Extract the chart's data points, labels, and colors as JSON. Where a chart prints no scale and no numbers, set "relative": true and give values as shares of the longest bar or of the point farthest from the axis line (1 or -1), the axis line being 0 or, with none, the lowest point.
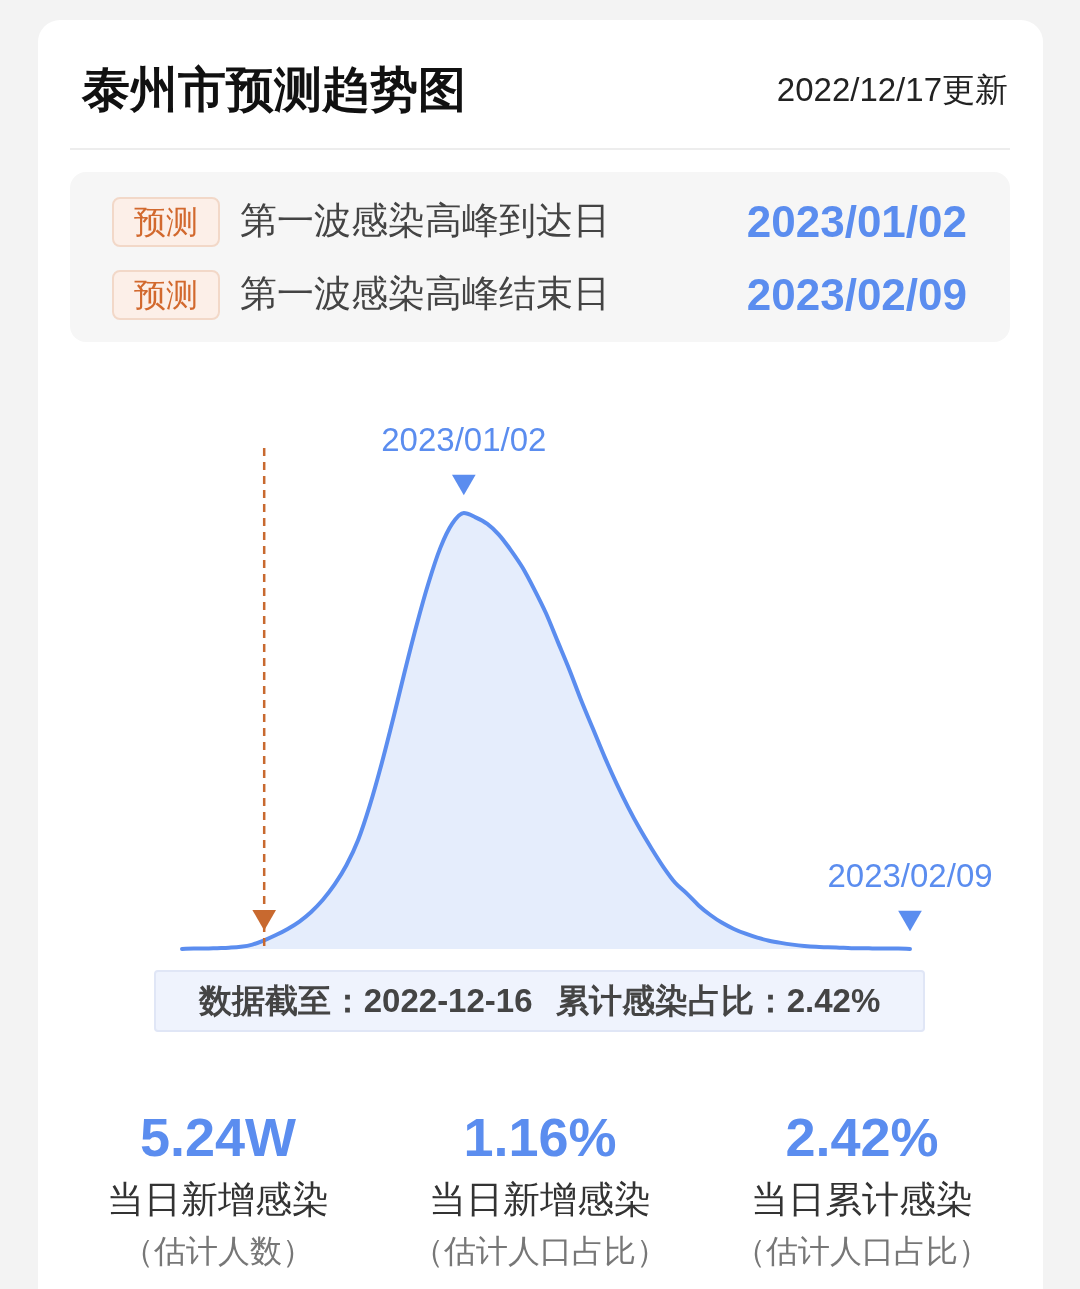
{
  "chart_data": {
    "type": "area",
    "title": "泰州市预测趋势图",
    "subtitle": "2022/12/17更新",
    "relative": true,
    "categories": [
      null,
      null,
      null,
      null,
      null,
      null,
      null,
      null,
      null,
      null,
      null,
      null,
      null,
      null,
      null,
      null,
      null,
      null,
      null,
      null,
      null,
      null,
      null,
      null,
      null,
      null,
      null,
      null,
      null,
      null,
      null,
      null,
      null,
      null,
      null,
      null,
      null,
      null,
      null,
      null,
      null,
      null,
      null,
      null,
      null,
      null,
      null,
      null,
      null,
      null,
      null,
      null,
      null,
      null,
      null,
      null,
      null,
      null,
      null,
      null,
      null,
      null,
      null
    ],
    "series": [
      {
        "color": "#5b8def",
        "values": [
          0,
          0.001,
          0.001,
          0.002,
          0.003,
          0.005,
          0.01,
          0.02,
          0.032,
          0.046,
          0.063,
          0.085,
          0.113,
          0.148,
          0.192,
          0.25,
          0.33,
          0.425,
          0.53,
          0.64,
          0.745,
          0.84,
          0.92,
          0.975,
          1,
          0.99,
          0.975,
          0.95,
          0.915,
          0.875,
          0.825,
          0.77,
          0.705,
          0.64,
          0.57,
          0.505,
          0.44,
          0.38,
          0.325,
          0.275,
          0.23,
          0.188,
          0.152,
          0.127,
          0.1,
          0.078,
          0.06,
          0.046,
          0.035,
          0.026,
          0.019,
          0.014,
          0.01,
          0.007,
          0.005,
          0.004,
          0.003,
          0.002,
          0.002,
          0.001,
          0.001,
          0.001,
          0
        ]
      }
    ],
    "annotations": [
      {
        "text": "2023/01/02",
        "y": 1
      },
      {
        "text": "2023/02/09",
        "y": 0
      },
      "数据截至：2022-12-16 累计感染占比：2.42%",
      "预测",
      "第一波感染高峰到达日",
      "2023/01/02",
      "预测",
      "第一波感染高峰结束日",
      "2023/02/09",
      "5.24W",
      "当日新增感染",
      "（估计人数）",
      "1.16%",
      "当日新增感染",
      "（估计人口占比）",
      "2.42%",
      "当日累计感染",
      "（估计人口占比）"
    ]
  }
}
